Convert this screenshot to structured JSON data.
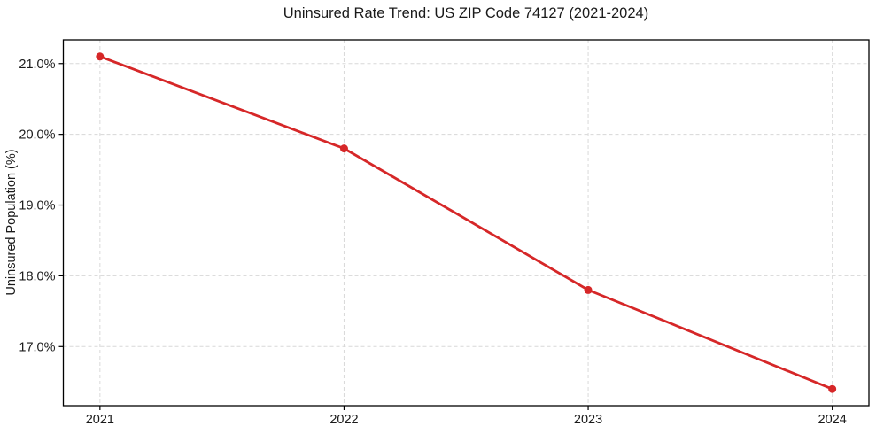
{
  "chart_data": {
    "type": "line",
    "title": "Uninsured Rate Trend: US ZIP Code 74127 (2021-2024)",
    "xlabel": "",
    "ylabel": "Uninsured Population (%)",
    "x": [
      2021,
      2022,
      2023,
      2024
    ],
    "values": [
      21.1,
      19.8,
      17.8,
      16.4
    ],
    "xtick_labels": [
      "2021",
      "2022",
      "2023",
      "2024"
    ],
    "ytick_values": [
      17.0,
      18.0,
      19.0,
      20.0,
      21.0
    ],
    "ytick_labels": [
      "17.0%",
      "18.0%",
      "19.0%",
      "20.0%",
      "21.0%"
    ],
    "xlim": [
      2020.85,
      2024.15
    ],
    "ylim": [
      16.165,
      21.335
    ],
    "grid": true,
    "grid_style": "dashed",
    "legend_position": "none",
    "colors": {
      "line": "#d62728",
      "marker": "#d62728",
      "grid": "#d8d8d8",
      "axis": "#000000",
      "text": "#1a1a1a",
      "background": "#ffffff"
    }
  }
}
